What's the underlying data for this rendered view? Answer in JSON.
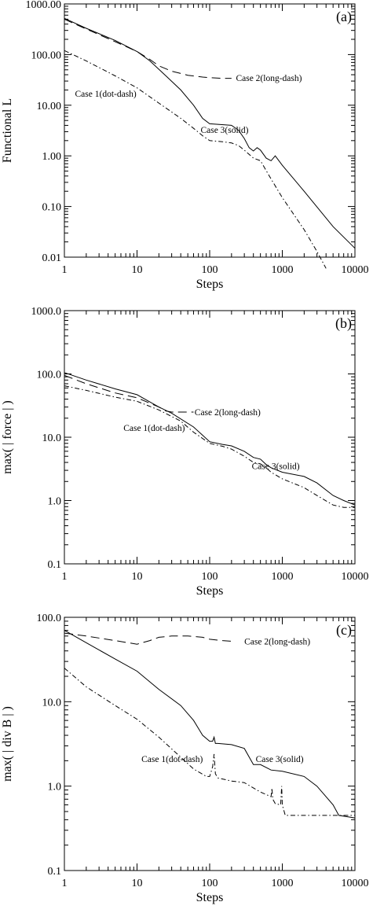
{
  "chart_data": [
    {
      "type": "line",
      "panel_label": "(a)",
      "xlabel": "Steps",
      "ylabel": "Functional L",
      "x_scale": "log",
      "y_scale": "log",
      "xlim": [
        1,
        10000
      ],
      "ylim": [
        0.01,
        1000
      ],
      "x_ticks": [
        {
          "value": 1,
          "label": "1"
        },
        {
          "value": 10,
          "label": "10"
        },
        {
          "value": 100,
          "label": "100"
        },
        {
          "value": 1000,
          "label": "1000"
        },
        {
          "value": 10000,
          "label": "10000"
        }
      ],
      "y_ticks": [
        {
          "value": 0.01,
          "label": "0.01"
        },
        {
          "value": 0.1,
          "label": "0.10"
        },
        {
          "value": 1,
          "label": "1.00"
        },
        {
          "value": 10,
          "label": "10.00"
        },
        {
          "value": 100,
          "label": "100.00"
        },
        {
          "value": 1000,
          "label": "1000.00"
        }
      ],
      "annotations": [
        {
          "text": "Case 2(long-dash)",
          "x": 230,
          "y": 35
        },
        {
          "text": "Case 1(dot-dash)",
          "x": 1.4,
          "y": 17
        },
        {
          "text": "Case 3(solid)",
          "x": 75,
          "y": 3.3
        }
      ],
      "series": [
        {
          "style": "solid",
          "x": [
            1,
            2,
            5,
            10,
            15,
            25,
            40,
            60,
            80,
            100,
            130,
            200,
            250,
            300,
            350,
            400,
            450,
            500,
            600,
            700,
            800,
            1000,
            2000,
            5000,
            10000
          ],
          "y": [
            520,
            330,
            190,
            115,
            75,
            38,
            20,
            10,
            5.5,
            4.3,
            4.2,
            4.0,
            3.2,
            2.2,
            1.45,
            1.25,
            1.45,
            1.3,
            0.9,
            0.8,
            1.0,
            0.65,
            0.2,
            0.04,
            0.015
          ]
        },
        {
          "style": "long-dash",
          "x": [
            1,
            2,
            5,
            10,
            15,
            20,
            30,
            50,
            80,
            100,
            150,
            200
          ],
          "y": [
            500,
            320,
            180,
            115,
            80,
            60,
            47,
            39,
            36,
            35,
            34,
            34
          ]
        },
        {
          "style": "dot-dash",
          "x": [
            1,
            2,
            5,
            10,
            20,
            40,
            60,
            80,
            100,
            150,
            200,
            250,
            300,
            400,
            500,
            700,
            1000,
            2000,
            3000,
            4000
          ],
          "y": [
            120,
            75,
            38,
            22,
            11,
            5.5,
            3.5,
            2.5,
            2.0,
            1.9,
            1.8,
            1.6,
            1.3,
            0.9,
            0.8,
            0.35,
            0.15,
            0.035,
            0.013,
            0.006
          ]
        }
      ]
    },
    {
      "type": "line",
      "panel_label": "(b)",
      "xlabel": "Steps",
      "ylabel": "max( | force | )",
      "x_scale": "log",
      "y_scale": "log",
      "xlim": [
        1,
        10000
      ],
      "ylim": [
        0.1,
        1000
      ],
      "x_ticks": [
        {
          "value": 1,
          "label": "1"
        },
        {
          "value": 10,
          "label": "10"
        },
        {
          "value": 100,
          "label": "100"
        },
        {
          "value": 1000,
          "label": "1000"
        },
        {
          "value": 10000,
          "label": "10000"
        }
      ],
      "y_ticks": [
        {
          "value": 0.1,
          "label": "0.1"
        },
        {
          "value": 1,
          "label": "1.0"
        },
        {
          "value": 10,
          "label": "10.0"
        },
        {
          "value": 100,
          "label": "100.0"
        },
        {
          "value": 1000,
          "label": "1000.0"
        }
      ],
      "annotations": [
        {
          "text": "Case 2(long-dash)",
          "x": 62,
          "y": 25
        },
        {
          "text": "Case 1(dot-dash)",
          "x": 6.5,
          "y": 14
        },
        {
          "text": "Case 3(solid)",
          "x": 380,
          "y": 3.5
        }
      ],
      "series": [
        {
          "style": "solid",
          "x": [
            1,
            2,
            5,
            10,
            20,
            30,
            60,
            100,
            150,
            200,
            300,
            400,
            500,
            600,
            700,
            1000,
            2000,
            3000,
            5000,
            7000,
            10000
          ],
          "y": [
            105,
            80,
            58,
            47,
            30,
            24,
            14.5,
            8.5,
            7.7,
            7.3,
            6.0,
            4.8,
            4.5,
            3.7,
            3.3,
            2.8,
            2.4,
            1.9,
            1.2,
            1.0,
            0.85
          ]
        },
        {
          "style": "long-dash",
          "x": [
            1,
            2,
            5,
            10,
            20,
            25,
            30,
            40,
            50,
            60
          ],
          "y": [
            95,
            70,
            50,
            42,
            30,
            26,
            25,
            25,
            25,
            25
          ]
        },
        {
          "style": "dot-dash",
          "x": [
            1,
            2,
            5,
            10,
            20,
            40,
            60,
            100,
            150,
            200,
            300,
            400,
            500,
            600,
            700,
            1000,
            2000,
            3000,
            5000,
            7000,
            10000
          ],
          "y": [
            65,
            55,
            43,
            37,
            27,
            18,
            12,
            8.0,
            7.2,
            6.5,
            5.0,
            4.0,
            3.8,
            3.3,
            2.8,
            2.2,
            1.6,
            1.2,
            0.85,
            0.78,
            0.78
          ]
        }
      ]
    },
    {
      "type": "line",
      "panel_label": "(c)",
      "xlabel": "Steps",
      "ylabel": "max( | div B | )",
      "x_scale": "log",
      "y_scale": "log",
      "xlim": [
        1,
        10000
      ],
      "ylim": [
        0.1,
        100
      ],
      "x_ticks": [
        {
          "value": 1,
          "label": "1"
        },
        {
          "value": 10,
          "label": "10"
        },
        {
          "value": 100,
          "label": "100"
        },
        {
          "value": 1000,
          "label": "1000"
        },
        {
          "value": 10000,
          "label": "10000"
        }
      ],
      "y_ticks": [
        {
          "value": 0.1,
          "label": "0.1"
        },
        {
          "value": 1,
          "label": "1.0"
        },
        {
          "value": 10,
          "label": "10.0"
        },
        {
          "value": 100,
          "label": "100.0"
        }
      ],
      "annotations": [
        {
          "text": "Case 2(long-dash)",
          "x": 300,
          "y": 52
        },
        {
          "text": "Case 1(dot-dash)",
          "x": 11.5,
          "y": 2.1
        },
        {
          "text": "Case 3(solid)",
          "x": 430,
          "y": 2.1
        }
      ],
      "series": [
        {
          "style": "solid",
          "x": [
            1,
            2,
            5,
            10,
            20,
            40,
            60,
            80,
            100,
            110,
            115,
            120,
            130,
            200,
            300,
            400,
            500,
            700,
            1000,
            2000,
            3000,
            5000,
            6000,
            10000
          ],
          "y": [
            70,
            50,
            32,
            23,
            14,
            9.0,
            6.0,
            4.0,
            3.4,
            3.4,
            3.8,
            3.2,
            3.2,
            3.1,
            2.8,
            1.8,
            1.8,
            1.55,
            1.5,
            1.3,
            1.0,
            0.6,
            0.45,
            0.42
          ]
        },
        {
          "style": "long-dash",
          "x": [
            1,
            2,
            5,
            10,
            15,
            20,
            30,
            50,
            80,
            100,
            150,
            200
          ],
          "y": [
            65,
            60,
            53,
            48,
            53,
            58,
            60,
            60,
            58,
            55,
            53,
            52
          ]
        },
        {
          "style": "dot-dash",
          "x": [
            1,
            2,
            5,
            10,
            20,
            40,
            60,
            90,
            100,
            110,
            115,
            120,
            130,
            200,
            300,
            500,
            700,
            720,
            740,
            800,
            950,
            980,
            1000,
            1100,
            2000,
            5000,
            10000
          ],
          "y": [
            25,
            15,
            9.0,
            6.2,
            3.8,
            2.2,
            1.6,
            1.3,
            1.3,
            1.7,
            2.4,
            1.4,
            1.25,
            1.15,
            1.1,
            0.85,
            0.75,
            0.95,
            0.7,
            0.62,
            0.6,
            1.0,
            0.6,
            0.45,
            0.45,
            0.45,
            0.45
          ]
        }
      ]
    }
  ]
}
